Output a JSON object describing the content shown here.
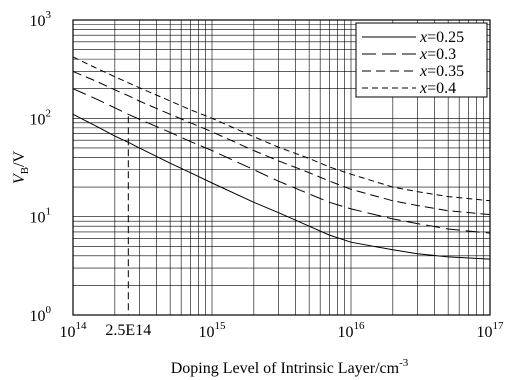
{
  "chart_data": {
    "type": "line",
    "x_scale": "log",
    "y_scale": "log",
    "xlim": [
      100000000000000.0,
      1e+17
    ],
    "ylim": [
      1,
      1000
    ],
    "xlabel": "Doping Level of Intrinsic Layer/cm",
    "xlabel_exp": "-3",
    "ylabel_main": "V",
    "ylabel_sub": "B",
    "ylabel_unit": "/V",
    "grid": true,
    "legend_position": "top-right",
    "x_ticks": [
      {
        "base": "10",
        "exp": "14",
        "value": 100000000000000.0
      },
      {
        "base": "10",
        "exp": "15",
        "value": 1000000000000000.0
      },
      {
        "base": "10",
        "exp": "16",
        "value": 1e+16
      },
      {
        "base": "10",
        "exp": "17",
        "value": 1e+17
      }
    ],
    "y_ticks": [
      {
        "base": "10",
        "exp": "0",
        "value": 1
      },
      {
        "base": "10",
        "exp": "1",
        "value": 10
      },
      {
        "base": "10",
        "exp": "2",
        "value": 100
      },
      {
        "base": "10",
        "exp": "3",
        "value": 1000
      }
    ],
    "annotation": {
      "label": "2.5E14",
      "x": 250000000000000.0,
      "y": 105
    },
    "series": [
      {
        "name": "x=0.25",
        "name_var": "x",
        "name_val": "=0.25",
        "dash": "solid",
        "x": [
          100000000000000.0,
          150000000000000.0,
          200000000000000.0,
          250000000000000.0,
          300000000000000.0,
          500000000000000.0,
          700000000000000.0,
          1000000000000000.0,
          2000000000000000.0,
          3000000000000000.0,
          5000000000000000.0,
          7000000000000000.0,
          1e+16,
          2e+16,
          3e+16,
          5e+16,
          1e+17
        ],
        "y": [
          110,
          82,
          66,
          57,
          50,
          35,
          28,
          22,
          14,
          11,
          8,
          6.5,
          5.5,
          4.6,
          4.2,
          3.9,
          3.7
        ]
      },
      {
        "name": "x=0.3",
        "name_var": "x",
        "name_val": "=0.3",
        "dash": "long",
        "x": [
          100000000000000.0,
          150000000000000.0,
          200000000000000.0,
          250000000000000.0,
          300000000000000.0,
          500000000000000.0,
          700000000000000.0,
          1000000000000000.0,
          2000000000000000.0,
          3000000000000000.0,
          5000000000000000.0,
          7000000000000000.0,
          1e+16,
          2e+16,
          3e+16,
          5e+16,
          1e+17
        ],
        "y": [
          200,
          155,
          128,
          110,
          98,
          72,
          58,
          47,
          30,
          23,
          17,
          14,
          12,
          9.5,
          8.5,
          7.5,
          6.8
        ]
      },
      {
        "name": "x=0.35",
        "name_var": "x",
        "name_val": "=0.35",
        "dash": "medium",
        "x": [
          100000000000000.0,
          150000000000000.0,
          200000000000000.0,
          250000000000000.0,
          300000000000000.0,
          500000000000000.0,
          700000000000000.0,
          1000000000000000.0,
          2000000000000000.0,
          3000000000000000.0,
          5000000000000000.0,
          7000000000000000.0,
          1e+16,
          2e+16,
          3e+16,
          5e+16,
          1e+17
        ],
        "y": [
          300,
          235,
          195,
          170,
          150,
          110,
          90,
          73,
          47,
          37,
          28,
          23,
          19,
          14.5,
          13,
          11.5,
          10.5
        ]
      },
      {
        "name": "x=0.4",
        "name_var": "x",
        "name_val": "=0.4",
        "dash": "short",
        "x": [
          100000000000000.0,
          150000000000000.0,
          200000000000000.0,
          250000000000000.0,
          300000000000000.0,
          500000000000000.0,
          700000000000000.0,
          1000000000000000.0,
          2000000000000000.0,
          3000000000000000.0,
          5000000000000000.0,
          7000000000000000.0,
          1e+16,
          2e+16,
          3e+16,
          5e+16,
          1e+17
        ],
        "y": [
          420,
          320,
          265,
          230,
          205,
          150,
          122,
          100,
          65,
          51,
          39,
          32,
          27,
          20,
          18,
          16,
          14.5
        ]
      }
    ]
  }
}
